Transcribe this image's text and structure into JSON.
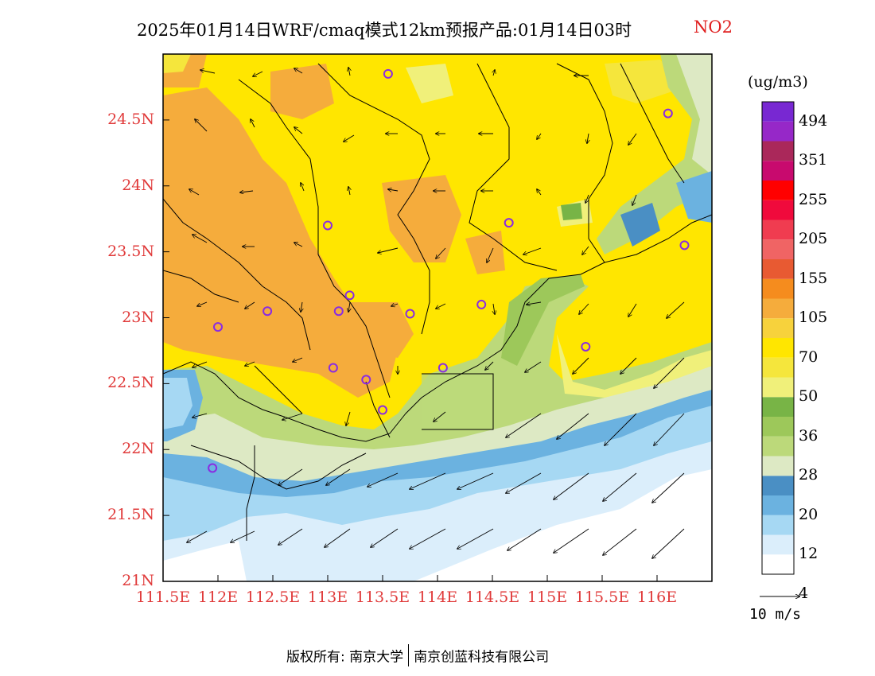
{
  "title": {
    "main": "2025年01月14日WRF/cmaq模式12km预报产品:01月14日03时",
    "pollutant": "NO2"
  },
  "axes": {
    "lat_labels": [
      "24.5N",
      "24N",
      "23.5N",
      "23N",
      "22.5N",
      "22N",
      "21.5N",
      "21N"
    ],
    "lat_values": [
      24.5,
      24,
      23.5,
      23,
      22.5,
      22,
      21.5,
      21
    ],
    "lon_labels": [
      "111.5E",
      "112E",
      "112.5E",
      "113E",
      "113.5E",
      "114E",
      "114.5E",
      "115E",
      "115.5E",
      "116E"
    ],
    "lon_values": [
      111.5,
      112,
      112.5,
      113,
      113.5,
      114,
      114.5,
      115,
      115.5,
      116
    ],
    "lat_range": [
      21,
      25
    ],
    "lon_range": [
      111.5,
      116.5
    ]
  },
  "colorbar": {
    "unit": "(ug/m3)",
    "labels": [
      "494",
      "351",
      "255",
      "205",
      "155",
      "105",
      "70",
      "50",
      "36",
      "28",
      "20",
      "12",
      "4"
    ],
    "colors_bottom_to_top": [
      "#ffffff",
      "#dbeefb",
      "#a6d8f3",
      "#6bb2e0",
      "#4a8fc4",
      "#dde9c4",
      "#bcd97a",
      "#9dc85a",
      "#78b446",
      "#f0f07a",
      "#f5e63c",
      "#ffe600",
      "#f7d23c",
      "#f5ac3c",
      "#f58c1e",
      "#e85a32",
      "#f06464",
      "#f03c50",
      "#f00a3c",
      "#ff0000",
      "#c80a6e",
      "#aa285a",
      "#9628c8",
      "#7828d2"
    ]
  },
  "wind_reference": {
    "label": "10 m/s"
  },
  "stations": [
    {
      "lon": 113.55,
      "lat": 24.85
    },
    {
      "lon": 116.1,
      "lat": 24.55
    },
    {
      "lon": 113.0,
      "lat": 23.7
    },
    {
      "lon": 114.65,
      "lat": 23.72
    },
    {
      "lon": 116.25,
      "lat": 23.55
    },
    {
      "lon": 113.2,
      "lat": 23.17
    },
    {
      "lon": 112.45,
      "lat": 23.05
    },
    {
      "lon": 113.1,
      "lat": 23.05
    },
    {
      "lon": 113.75,
      "lat": 23.03
    },
    {
      "lon": 114.4,
      "lat": 23.1
    },
    {
      "lon": 112.0,
      "lat": 22.93
    },
    {
      "lon": 115.35,
      "lat": 22.78
    },
    {
      "lon": 113.05,
      "lat": 22.62
    },
    {
      "lon": 113.35,
      "lat": 22.53
    },
    {
      "lon": 114.05,
      "lat": 22.62
    },
    {
      "lon": 113.5,
      "lat": 22.3
    },
    {
      "lon": 111.95,
      "lat": 21.86
    }
  ],
  "colors": {
    "axis_label": "#e03a3a",
    "title_pollutant": "#e02020",
    "station_ring": "#8a2be2"
  },
  "footer": {
    "copyright": "版权所有: 南京大学",
    "company": "南京创蓝科技有限公司"
  }
}
